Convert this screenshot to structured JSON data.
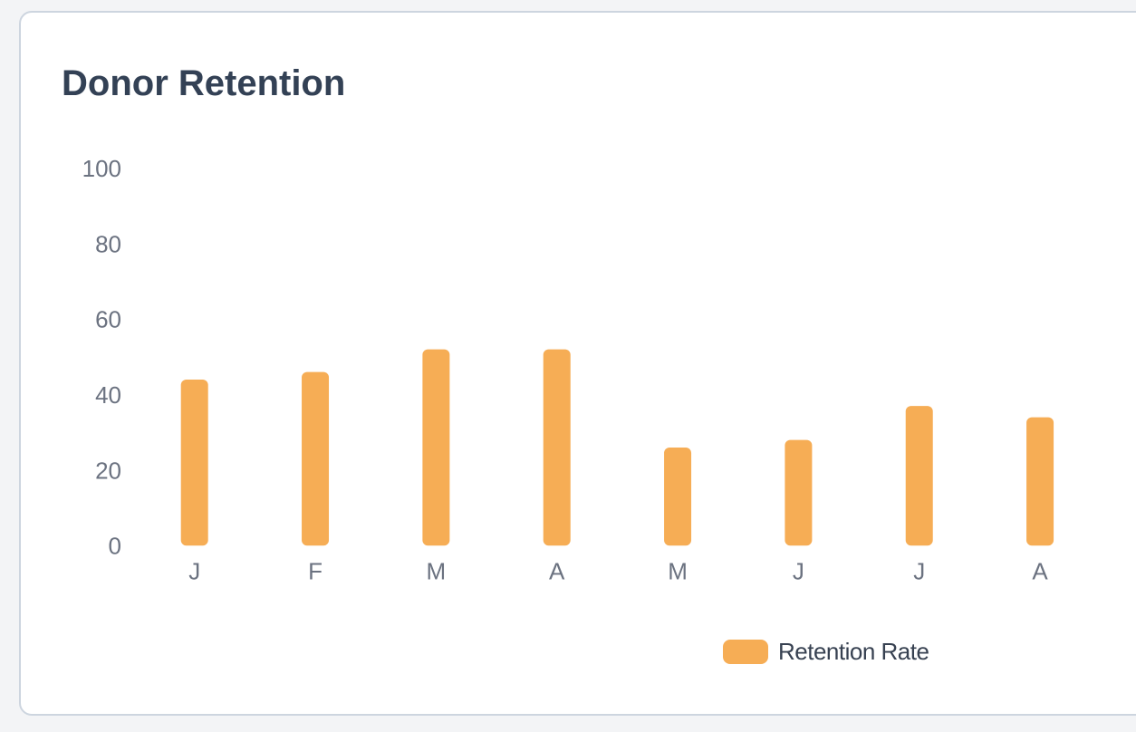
{
  "chart_data": {
    "type": "bar",
    "title": "Donor Retention",
    "categories": [
      "J",
      "F",
      "M",
      "A",
      "M",
      "J",
      "J",
      "A"
    ],
    "series": [
      {
        "name": "Retention Rate",
        "values": [
          44,
          46,
          52,
          52,
          26,
          28,
          37,
          34
        ]
      }
    ],
    "xlabel": "",
    "ylabel": "",
    "ylim": [
      0,
      100
    ],
    "yticks": [
      0,
      20,
      40,
      60,
      80,
      100
    ],
    "grid": false,
    "legend_position": "bottom"
  },
  "colors": {
    "bar": "#f6ad55",
    "page_background": "#f3f4f6",
    "card_background": "#ffffff",
    "card_border": "#cdd5df",
    "title_text": "#334155",
    "axis_tick_text": "#6b7280",
    "legend_text": "#374151"
  }
}
